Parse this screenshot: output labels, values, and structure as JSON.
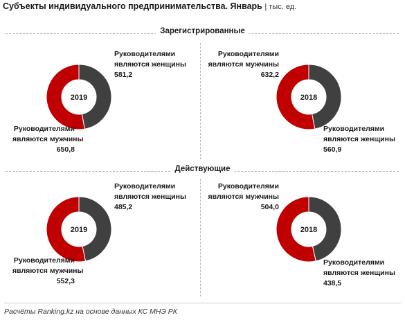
{
  "title": "Субъекты индивидуального предпринимательства. Январь",
  "units": "| тыс. ед.",
  "source": "Расчёты Ranking.kz на основе данных КС МНЭ РК",
  "colors": {
    "women": "#404040",
    "men": "#c00000"
  },
  "chart_data": [
    {
      "type": "pie",
      "section": "Зарегистрированные",
      "center_label": "2019",
      "slices": [
        {
          "name": "Руководителями являются женщины",
          "line1": "Руководителями",
          "line2": "являются женщины",
          "value": 581.2,
          "value_text": "581,2"
        },
        {
          "name": "Руководителями являются мужчины",
          "line1": "Руководителями",
          "line2": "являются мужчины",
          "value": 650.8,
          "value_text": "650,8"
        }
      ]
    },
    {
      "type": "pie",
      "section": "Зарегистрированные",
      "center_label": "2018",
      "slices": [
        {
          "name": "Руководителями являются женщины",
          "line1": "Руководителями",
          "line2": "являются женщины",
          "value": 560.9,
          "value_text": "560,9"
        },
        {
          "name": "Руководителями являются мужчины",
          "line1": "Руководителями",
          "line2": "являются мужчины",
          "value": 632.2,
          "value_text": "632,2"
        }
      ]
    },
    {
      "type": "pie",
      "section": "Действующие",
      "center_label": "2019",
      "slices": [
        {
          "name": "Руководителями являются женщины",
          "line1": "Руководителями",
          "line2": "являются женщины",
          "value": 485.2,
          "value_text": "485,2"
        },
        {
          "name": "Руководителями являются мужчины",
          "line1": "Руководителями",
          "line2": "являются мужчины",
          "value": 552.3,
          "value_text": "552,3"
        }
      ]
    },
    {
      "type": "pie",
      "section": "Действующие",
      "center_label": "2018",
      "slices": [
        {
          "name": "Руководителями являются женщины",
          "line1": "Руководителями",
          "line2": "являются женщины",
          "value": 438.5,
          "value_text": "438,5"
        },
        {
          "name": "Руководителями являются мужчины",
          "line1": "Руководителями",
          "line2": "являются мужчины",
          "value": 504.0,
          "value_text": "504,0"
        }
      ]
    }
  ]
}
